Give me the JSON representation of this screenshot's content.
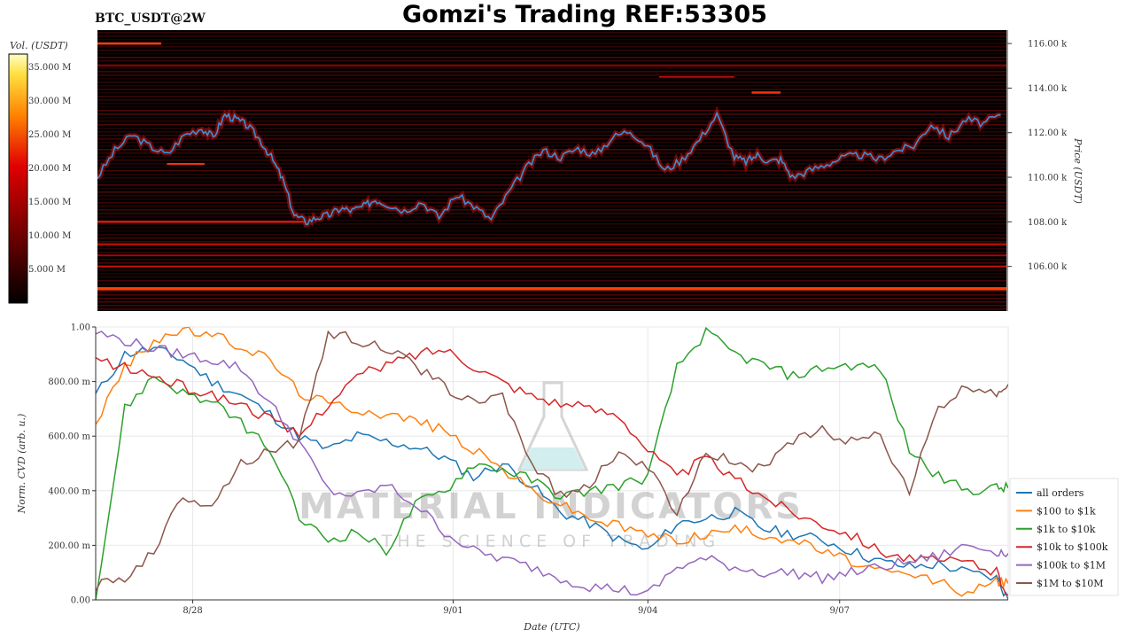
{
  "header": {
    "symbol": "BTC_USDT@2W",
    "title": "Gomzi's Trading REF:53305"
  },
  "watermark": {
    "line1": "MATERIAL INDICATORS",
    "line2": "THE SCIENCE OF TRADING"
  },
  "colors": {
    "heatmap_bg": "#000000",
    "price_line": "#3a8fd0",
    "grid": "#e8e8e8"
  },
  "chart_data": [
    {
      "type": "heatmap",
      "name": "orderbook-heatmap",
      "colorbar": {
        "label": "Vol. (USDT)",
        "ticks": [
          "35.000 M",
          "30.000 M",
          "25.000 M",
          "20.000 M",
          "15.000 M",
          "10.000 M",
          "5.000 M"
        ],
        "range": [
          0,
          37
        ]
      },
      "ylabel": "Price (USDT)",
      "y_ticks": [
        "116.00 k",
        "114.00 k",
        "112.00 k",
        "110.00 k",
        "108.00 k",
        "106.00 k"
      ],
      "ylim": [
        104.0,
        116.6
      ],
      "x_range_days": [
        0,
        15.7
      ],
      "price_series": {
        "t": [
          0,
          0.3,
          0.6,
          0.9,
          1.2,
          1.5,
          1.8,
          2.0,
          2.2,
          2.4,
          2.6,
          2.8,
          3.0,
          3.2,
          3.4,
          3.6,
          3.8,
          4.0,
          4.2,
          4.4,
          4.6,
          4.8,
          5.0,
          5.3,
          5.6,
          5.9,
          6.2,
          6.5,
          6.8,
          7.1,
          7.4,
          7.7,
          8.0,
          8.3,
          8.6,
          8.9,
          9.2,
          9.5,
          9.8,
          10.1,
          10.4,
          10.7,
          11.0,
          11.2,
          11.4,
          11.6,
          11.8,
          12.0,
          12.3,
          12.6,
          12.9,
          13.2,
          13.5,
          13.8,
          14.1,
          14.4,
          14.7,
          15.0,
          15.3,
          15.6
        ],
        "price": [
          110.0,
          111.2,
          111.9,
          111.4,
          111.0,
          111.9,
          112.2,
          111.8,
          112.8,
          112.6,
          112.3,
          111.7,
          110.9,
          109.9,
          108.3,
          108.0,
          108.2,
          108.3,
          108.6,
          108.5,
          108.7,
          109.0,
          108.8,
          108.5,
          108.9,
          108.2,
          109.2,
          108.7,
          108.1,
          109.3,
          110.4,
          111.2,
          110.9,
          111.3,
          111.0,
          111.8,
          112.1,
          111.4,
          110.3,
          110.8,
          111.7,
          112.8,
          110.9,
          110.7,
          111.0,
          110.7,
          110.8,
          110.0,
          110.3,
          110.6,
          110.9,
          111.0,
          110.8,
          111.2,
          111.4,
          112.4,
          111.8,
          112.6,
          112.4,
          112.8
        ]
      }
    },
    {
      "type": "line",
      "name": "norm-cvd",
      "xlabel": "Date (UTC)",
      "ylabel": "Norm. CVD (arb. u.)",
      "ylim": [
        0,
        1.0
      ],
      "y_ticks": [
        "0.00",
        "200.00 m",
        "400.00 m",
        "600.00 m",
        "800.00 m",
        "1.00"
      ],
      "x_ticks": [
        {
          "day": 1.67,
          "label": "8/28"
        },
        {
          "day": 6.15,
          "label": "9/01"
        },
        {
          "day": 9.5,
          "label": "9/04"
        },
        {
          "day": 12.8,
          "label": "9/07"
        }
      ],
      "x_range_days": [
        0,
        15.7
      ],
      "legend_position": "bottom-right",
      "t": [
        0,
        0.5,
        1.0,
        1.5,
        2.0,
        2.5,
        3.0,
        3.5,
        4.0,
        4.5,
        5.0,
        5.5,
        6.0,
        6.5,
        7.0,
        7.5,
        8.0,
        8.5,
        9.0,
        9.5,
        10.0,
        10.5,
        11.0,
        11.5,
        12.0,
        12.5,
        13.0,
        13.5,
        14.0,
        14.5,
        15.0,
        15.5,
        15.7
      ],
      "series": [
        {
          "name": "all orders",
          "color": "#1f77b4",
          "values": [
            0.75,
            0.9,
            0.92,
            0.88,
            0.8,
            0.75,
            0.68,
            0.6,
            0.55,
            0.6,
            0.58,
            0.56,
            0.52,
            0.45,
            0.5,
            0.42,
            0.32,
            0.28,
            0.22,
            0.18,
            0.28,
            0.3,
            0.32,
            0.26,
            0.24,
            0.22,
            0.18,
            0.14,
            0.12,
            0.13,
            0.1,
            0.08,
            0.0
          ]
        },
        {
          "name": "$100 to $1k",
          "color": "#ff7f0e",
          "values": [
            0.65,
            0.85,
            0.95,
            0.99,
            0.97,
            0.93,
            0.88,
            0.76,
            0.72,
            0.7,
            0.68,
            0.66,
            0.62,
            0.55,
            0.48,
            0.4,
            0.35,
            0.3,
            0.27,
            0.24,
            0.22,
            0.24,
            0.26,
            0.24,
            0.22,
            0.18,
            0.14,
            0.1,
            0.09,
            0.07,
            0.02,
            0.07,
            0.06
          ]
        },
        {
          "name": "$1k to $10k",
          "color": "#2ca02c",
          "values": [
            0.0,
            0.7,
            0.82,
            0.76,
            0.72,
            0.65,
            0.55,
            0.3,
            0.22,
            0.25,
            0.18,
            0.35,
            0.4,
            0.5,
            0.48,
            0.44,
            0.38,
            0.4,
            0.42,
            0.45,
            0.85,
            0.98,
            0.9,
            0.86,
            0.82,
            0.85,
            0.86,
            0.85,
            0.55,
            0.45,
            0.4,
            0.41,
            0.41
          ]
        },
        {
          "name": "$10k to $100k",
          "color": "#d62728",
          "values": [
            0.88,
            0.85,
            0.82,
            0.78,
            0.75,
            0.72,
            0.66,
            0.6,
            0.72,
            0.82,
            0.86,
            0.9,
            0.92,
            0.86,
            0.8,
            0.75,
            0.72,
            0.7,
            0.68,
            0.55,
            0.45,
            0.52,
            0.44,
            0.38,
            0.32,
            0.28,
            0.24,
            0.18,
            0.15,
            0.14,
            0.14,
            0.1,
            0.02
          ]
        },
        {
          "name": "$100k to $1M",
          "color": "#9467bd",
          "values": [
            0.98,
            0.95,
            0.92,
            0.9,
            0.88,
            0.85,
            0.72,
            0.58,
            0.4,
            0.38,
            0.42,
            0.35,
            0.25,
            0.18,
            0.15,
            0.12,
            0.08,
            0.05,
            0.04,
            0.02,
            0.12,
            0.15,
            0.12,
            0.1,
            0.1,
            0.08,
            0.1,
            0.12,
            0.14,
            0.16,
            0.2,
            0.18,
            0.17
          ]
        },
        {
          "name": "$1M to $10M",
          "color": "#8c564b",
          "values": [
            0.05,
            0.08,
            0.18,
            0.38,
            0.35,
            0.5,
            0.55,
            0.58,
            0.98,
            0.95,
            0.92,
            0.86,
            0.78,
            0.72,
            0.75,
            0.5,
            0.38,
            0.42,
            0.55,
            0.48,
            0.32,
            0.55,
            0.5,
            0.48,
            0.58,
            0.62,
            0.58,
            0.6,
            0.4,
            0.7,
            0.78,
            0.76,
            0.79
          ]
        }
      ]
    }
  ]
}
